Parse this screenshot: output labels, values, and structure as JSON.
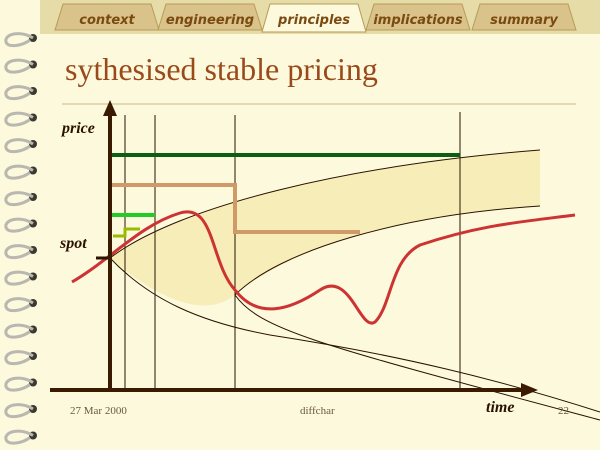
{
  "tabs": [
    "context",
    "engineering",
    "principles",
    "implications",
    "summary"
  ],
  "title": "sythesised stable pricing",
  "diagram": {
    "y_label": "price",
    "spot_label": "spot",
    "x_label": "time"
  },
  "footer": {
    "date": "27 Mar 2000",
    "name": "diffchar",
    "page": "22"
  }
}
